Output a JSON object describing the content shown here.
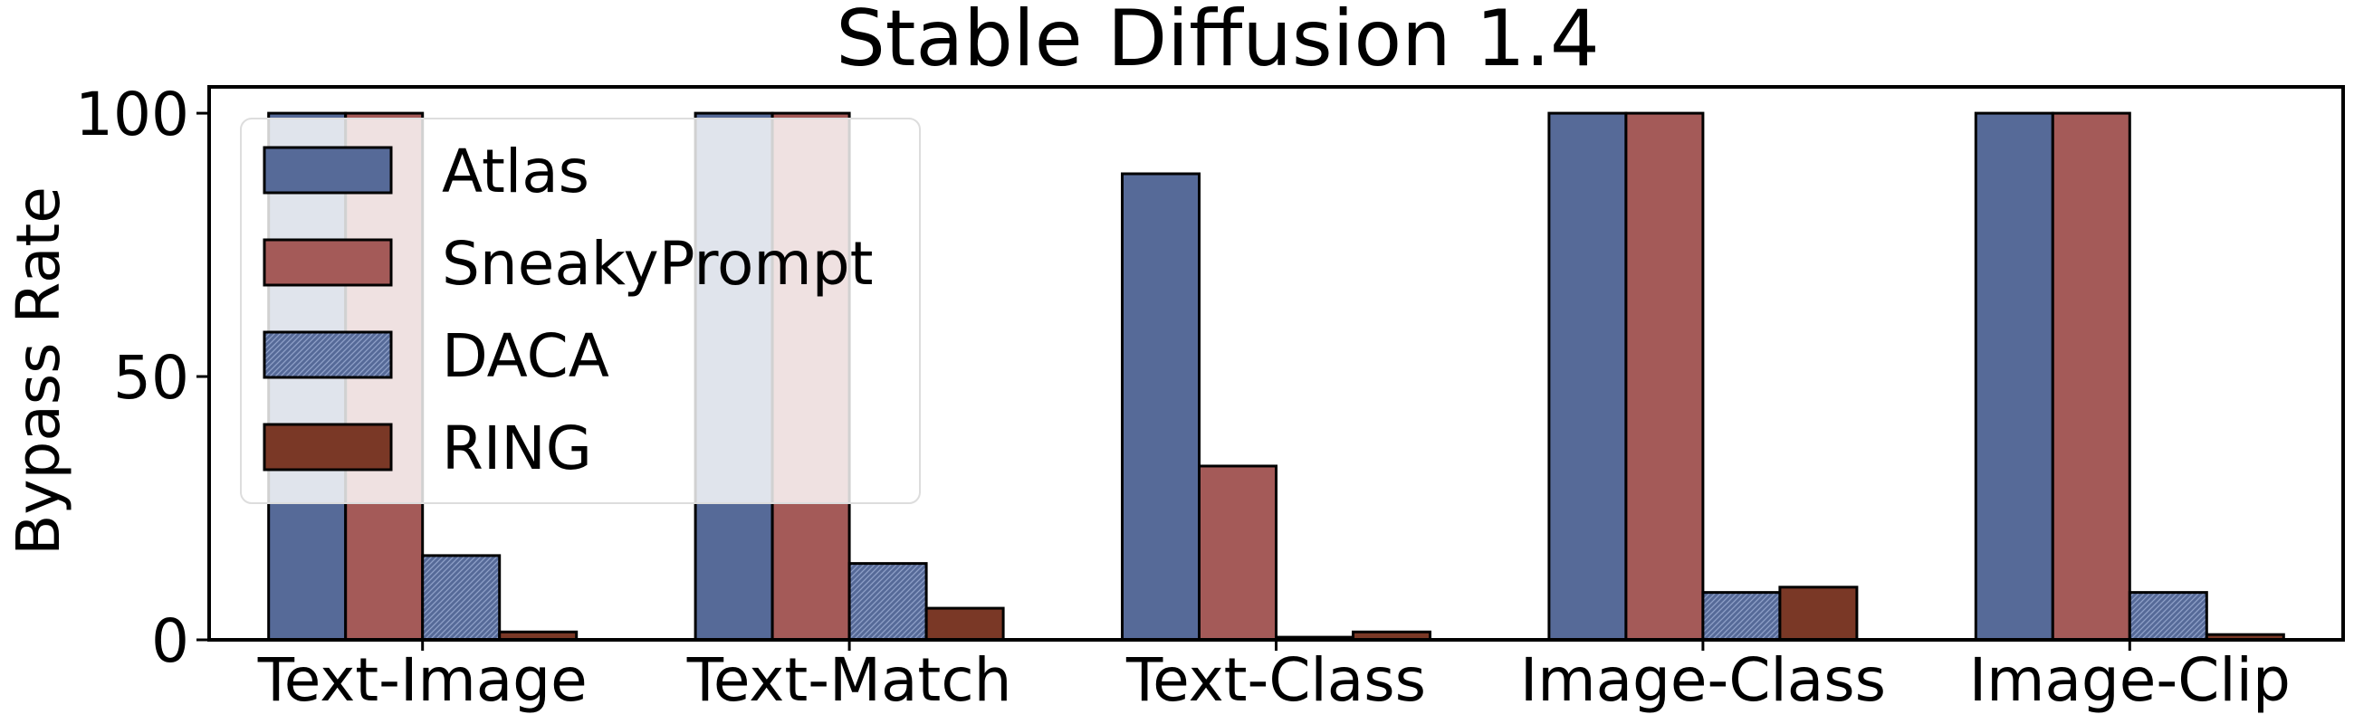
{
  "chart_data": {
    "type": "bar",
    "title": "Stable Diffusion 1.4",
    "xlabel": "",
    "ylabel": "Bypass Rate",
    "ylim": [
      0,
      105
    ],
    "yticks": [
      0,
      50,
      100
    ],
    "grid": false,
    "legend_position": "top-left",
    "categories": [
      "Text-Image",
      "Text-Match",
      "Text-Class",
      "Image-Class",
      "Image-Clip"
    ],
    "series": [
      {
        "name": "Atlas",
        "color": "#566a98",
        "hatch": false,
        "values": [
          100,
          100,
          88.5,
          100,
          100
        ]
      },
      {
        "name": "SneakyPrompt",
        "color": "#a45a58",
        "hatch": false,
        "values": [
          100,
          100,
          33,
          100,
          100
        ]
      },
      {
        "name": "DACA",
        "color": "#566a98",
        "hatch": true,
        "values": [
          16,
          14.5,
          0.5,
          9,
          9
        ]
      },
      {
        "name": "RING",
        "color": "#7a3826",
        "hatch": false,
        "values": [
          1.5,
          6,
          1.5,
          10,
          1
        ]
      }
    ]
  }
}
